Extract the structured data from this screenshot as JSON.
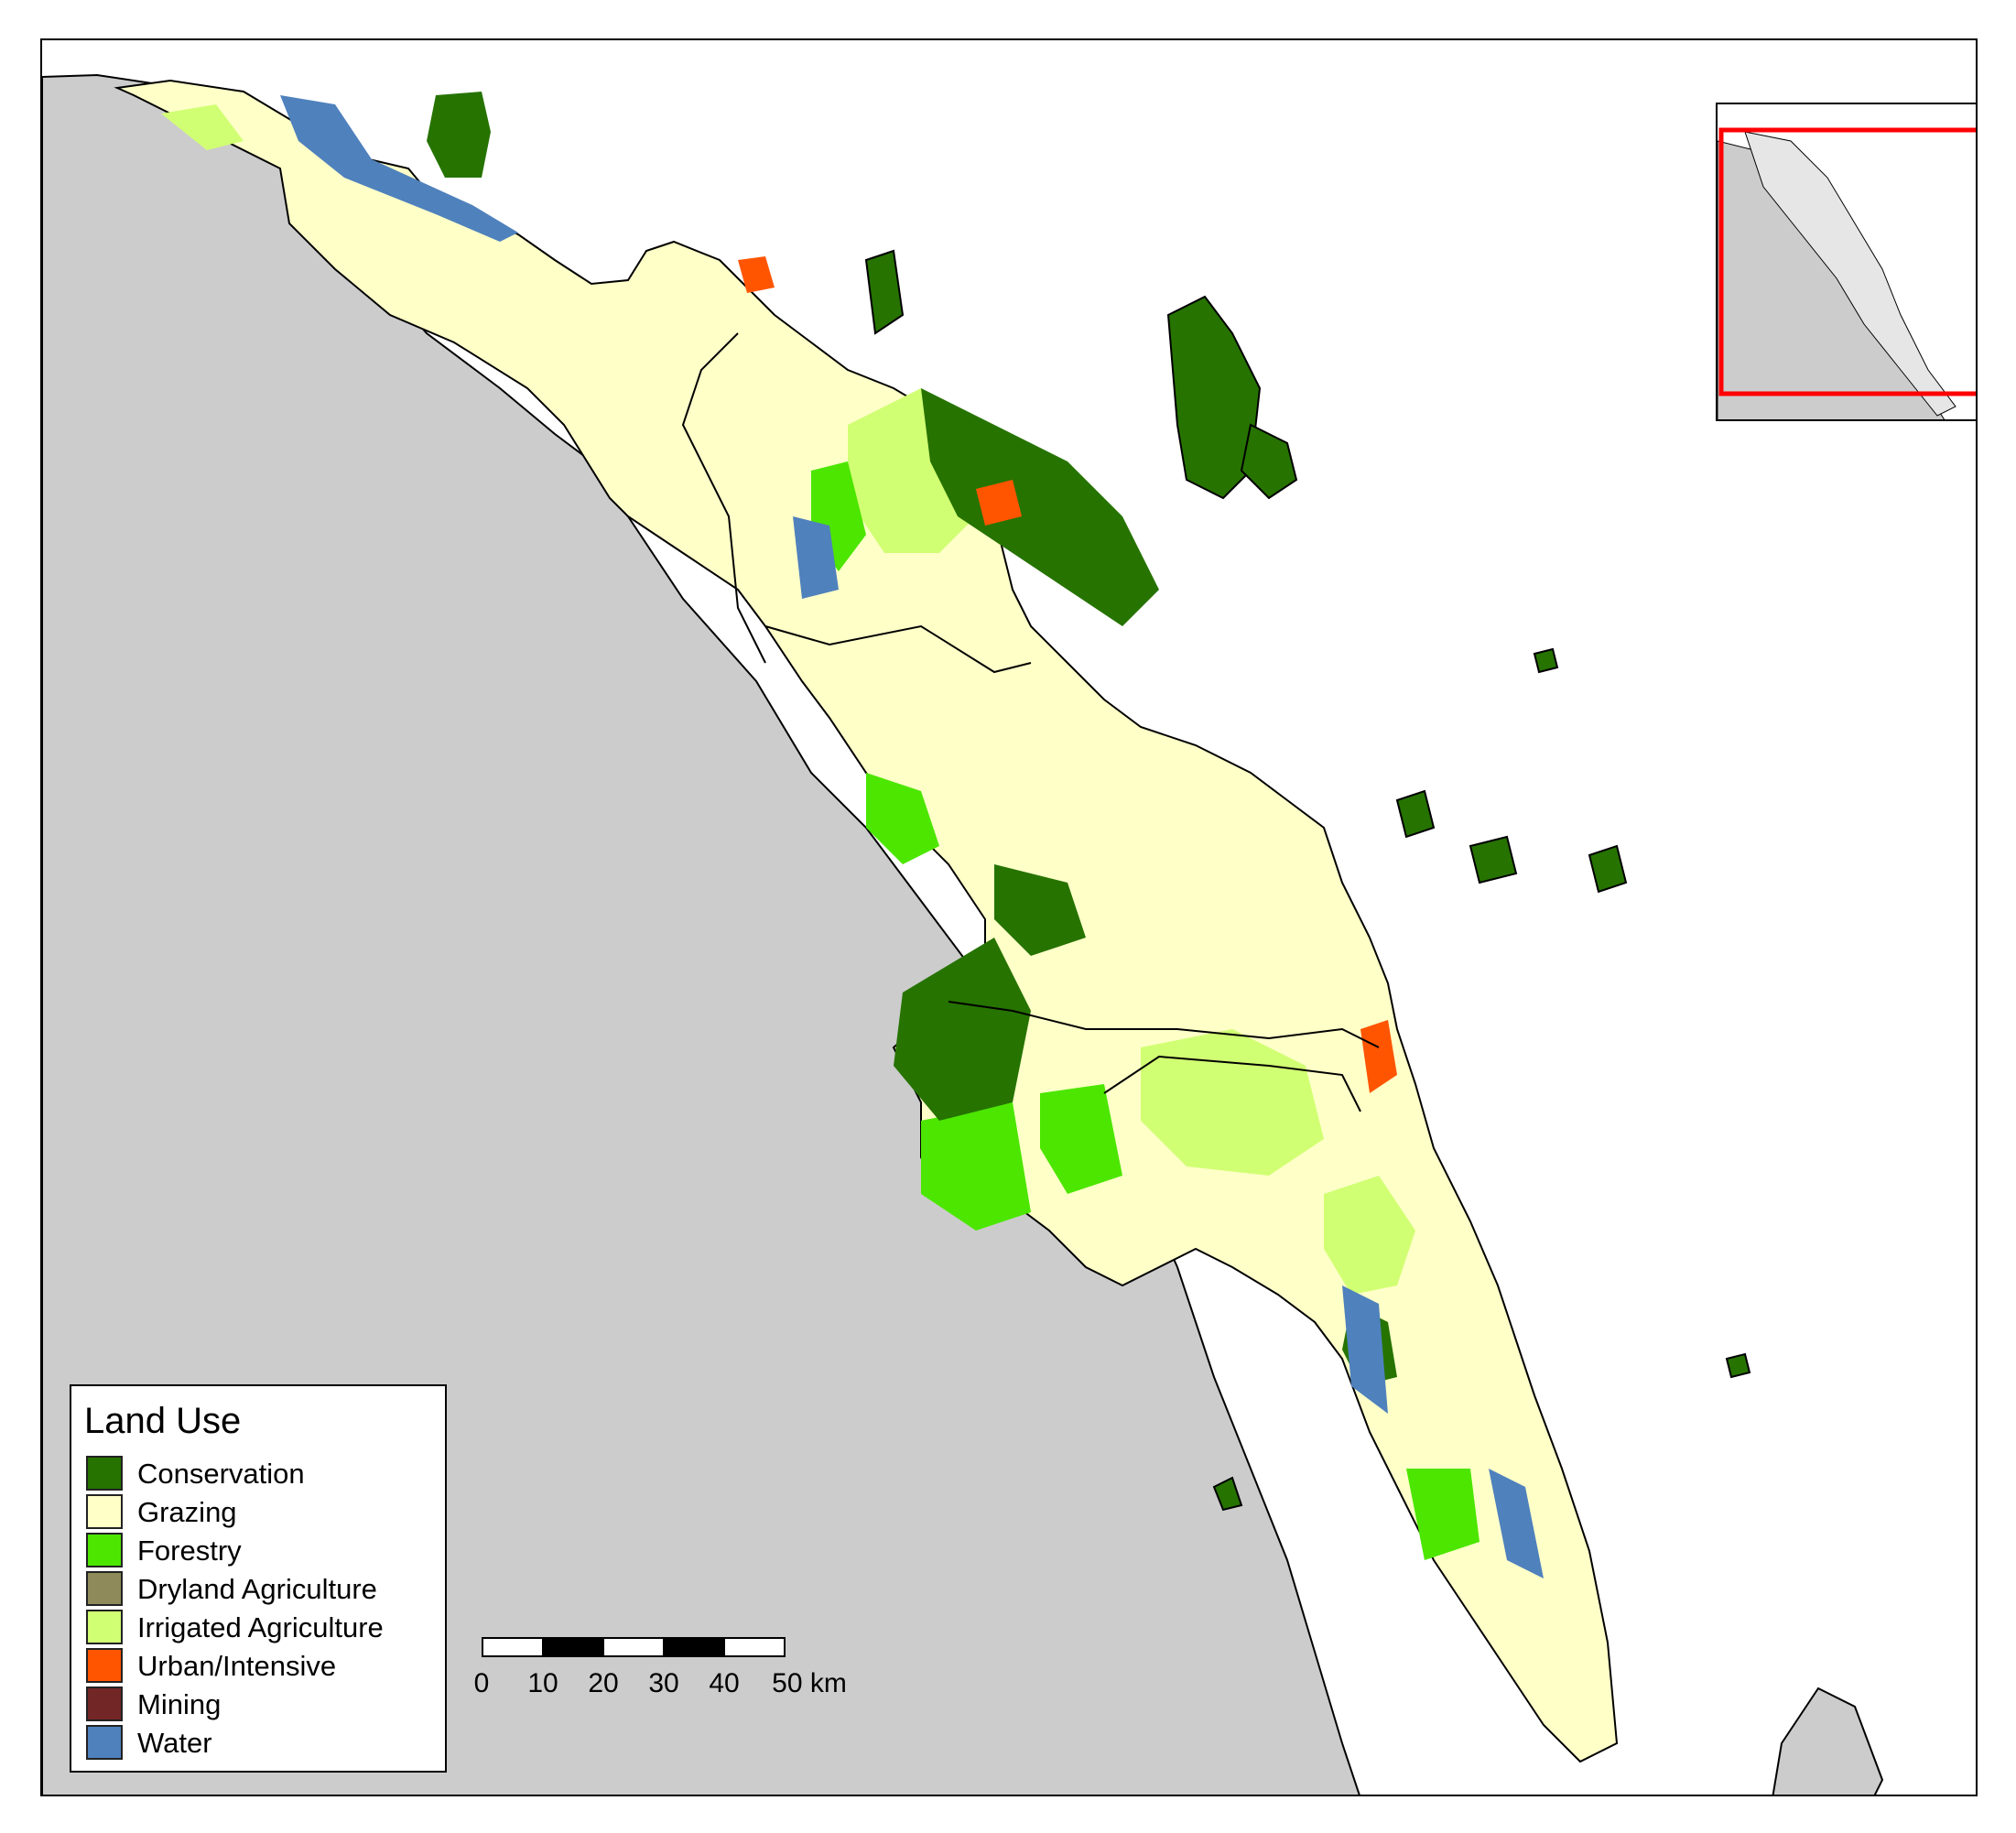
{
  "map": {
    "colors": {
      "ocean": "#ffffff",
      "land": "#cccccc",
      "region_outline": "#000000"
    }
  },
  "legend": {
    "title": "Land Use",
    "items": [
      {
        "label": "Conservation",
        "color": "#267300"
      },
      {
        "label": "Grazing",
        "color": "#ffffc8"
      },
      {
        "label": "Forestry",
        "color": "#4ce600"
      },
      {
        "label": "Dryland Agriculture",
        "color": "#8f8a5a"
      },
      {
        "label": "Irrigated Agriculture",
        "color": "#d1ff73"
      },
      {
        "label": "Urban/Intensive",
        "color": "#ff5500"
      },
      {
        "label": "Mining",
        "color": "#732626"
      },
      {
        "label": "Water",
        "color": "#4f81bd"
      }
    ]
  },
  "scalebar": {
    "ticks": [
      "0",
      "10",
      "20",
      "30",
      "40",
      "50 km"
    ]
  },
  "inset": {
    "extent_box_color": "#ff0000"
  }
}
